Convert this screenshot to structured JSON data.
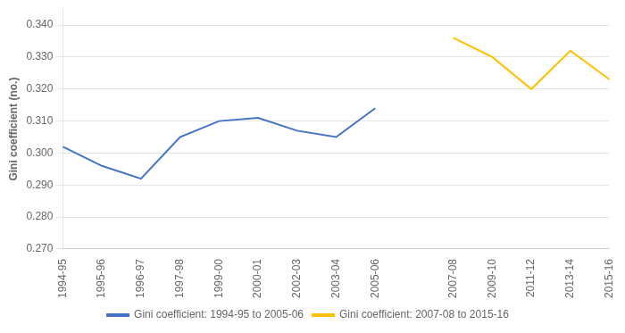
{
  "chart_data": {
    "type": "line",
    "categories": [
      "1994-95",
      "1995-96",
      "1996-97",
      "1997-98",
      "1999-00",
      "2000-01",
      "2002-03",
      "2003-04",
      "2005-06",
      null,
      "2007-08",
      "2009-10",
      "2011-12",
      "2013-14",
      "2015-16"
    ],
    "series": [
      {
        "name": "Gini coefficient: 1994-95 to 2005-06",
        "color": "#4472C4",
        "values": [
          0.302,
          0.296,
          0.292,
          0.305,
          0.31,
          0.311,
          0.307,
          0.305,
          0.314,
          null,
          null,
          null,
          null,
          null,
          null
        ]
      },
      {
        "name": "Gini coefficient: 2007-08 to 2015-16",
        "color": "#FFC000",
        "values": [
          null,
          null,
          null,
          null,
          null,
          null,
          null,
          null,
          null,
          null,
          0.336,
          0.33,
          0.32,
          0.332,
          0.323
        ]
      }
    ],
    "ylabel": "Gini coefficient (no.)",
    "ylim": [
      0.27,
      0.345
    ],
    "yticks": [
      {
        "value": 0.27,
        "label": "0.270"
      },
      {
        "value": 0.28,
        "label": "0.280"
      },
      {
        "value": 0.29,
        "label": "0.290"
      },
      {
        "value": 0.3,
        "label": "0.300"
      },
      {
        "value": 0.31,
        "label": "0.310"
      },
      {
        "value": 0.32,
        "label": "0.320"
      },
      {
        "value": 0.33,
        "label": "0.330"
      },
      {
        "value": 0.34,
        "label": "0.340"
      }
    ],
    "grid": true,
    "legend": "bottom"
  }
}
